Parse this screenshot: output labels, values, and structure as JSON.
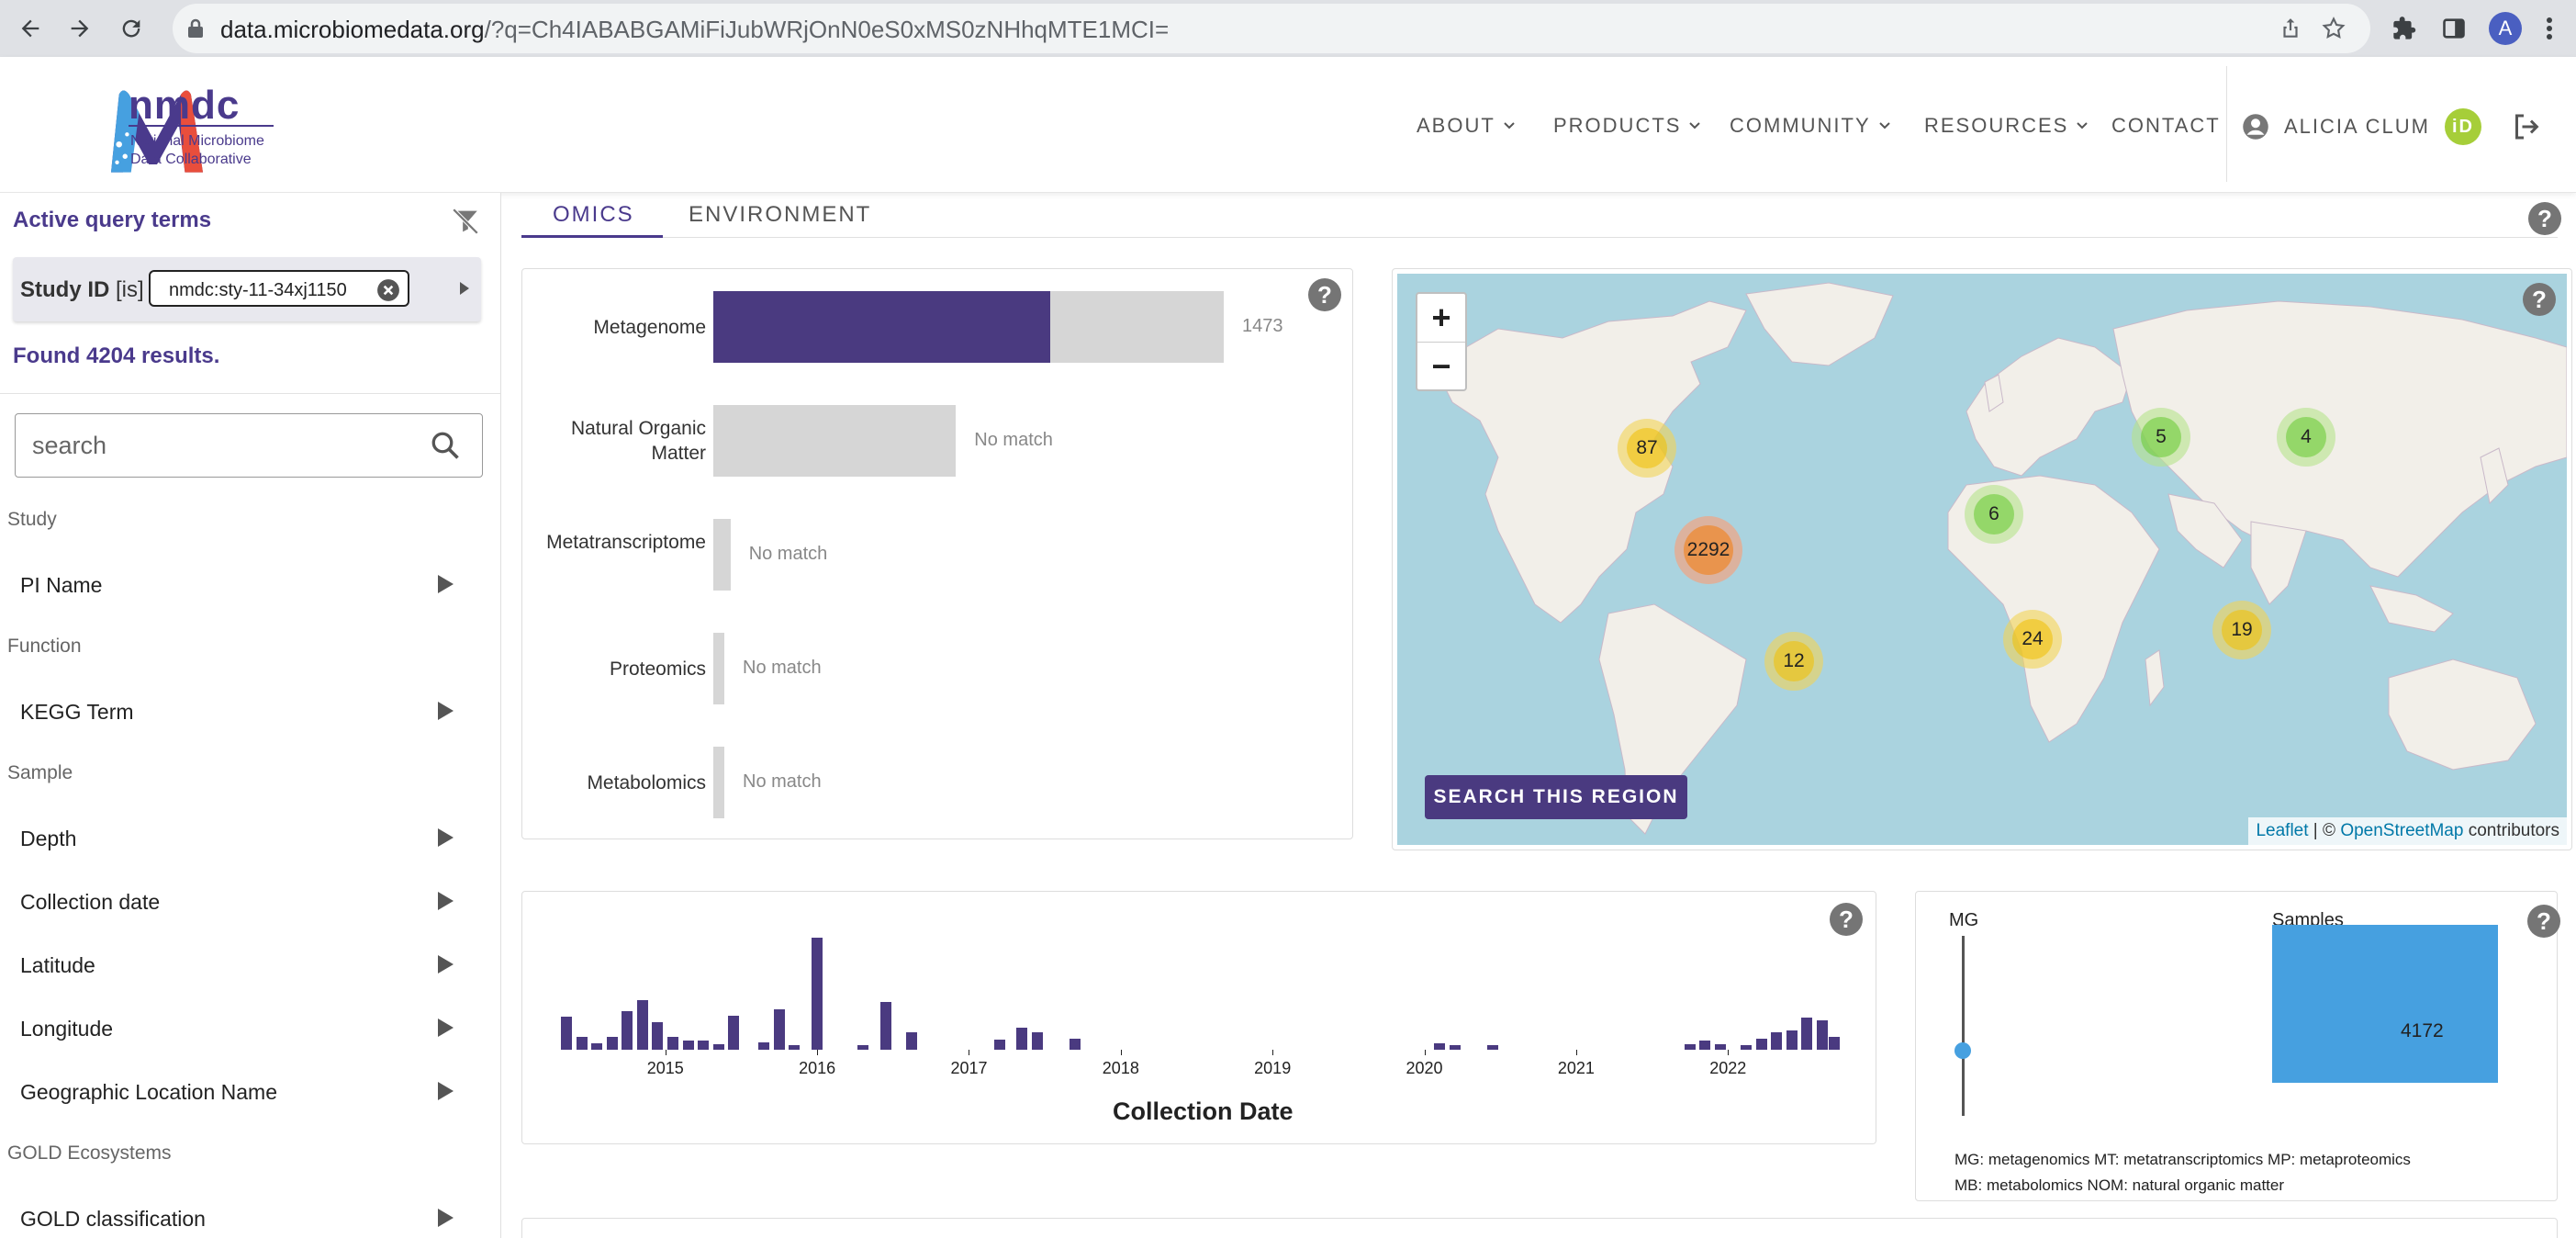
{
  "browser": {
    "url_host": "data.microbiomedata.org",
    "url_path": "/?q=Ch4IABABGAMiFiJubWRjOnN0eS0xMS0zNHhqMTE1MCI=",
    "profile_initial": "A"
  },
  "header": {
    "logo_word": "nmdc",
    "logo_sub_line1": "National Microbiome",
    "logo_sub_line2": "Data Collaborative",
    "nav": [
      {
        "label": "ABOUT"
      },
      {
        "label": "PRODUCTS"
      },
      {
        "label": "COMMUNITY"
      },
      {
        "label": "RESOURCES"
      },
      {
        "label": "CONTACT"
      }
    ],
    "user_name": "ALICIA CLUM",
    "orcid_label": "iD"
  },
  "sidebar": {
    "active_query_title": "Active query terms",
    "term_field": "Study ID",
    "term_op": "[is]",
    "term_value": "nmdc:sty-11-34xj1150",
    "found_text": "Found 4204 results.",
    "search_placeholder": "search",
    "groups": [
      {
        "title": "Study",
        "items": [
          "PI Name"
        ]
      },
      {
        "title": "Function",
        "items": [
          "KEGG Term"
        ]
      },
      {
        "title": "Sample",
        "items": [
          "Depth",
          "Collection date",
          "Latitude",
          "Longitude",
          "Geographic Location Name"
        ]
      },
      {
        "title": "GOLD Ecosystems",
        "items": [
          "GOLD classification"
        ]
      }
    ]
  },
  "tabs": [
    {
      "label": "OMICS",
      "active": true
    },
    {
      "label": "ENVIRONMENT",
      "active": false
    }
  ],
  "colors": {
    "brand": "#4a3a80",
    "bar_bg": "#d6d6d6",
    "upset_bar": "#46a0e0"
  },
  "omics_chart": {
    "chart_data": {
      "type": "bar",
      "orientation": "horizontal",
      "categories": [
        "Metagenome",
        "Natural Organic Matter",
        "Metatranscriptome",
        "Proteomics",
        "Metabolomics"
      ],
      "matched": [
        1473,
        0,
        0,
        0,
        0
      ],
      "totals": [
        2230,
        1060,
        75,
        38,
        28
      ],
      "value_labels": [
        "1473",
        "No match",
        "No match",
        "No match",
        "No match"
      ]
    }
  },
  "map": {
    "zoom_in": "+",
    "zoom_out": "−",
    "search_region_label": "SEARCH THIS REGION",
    "attrib_leaflet": "Leaflet",
    "attrib_sep": " | © ",
    "attrib_osm": "OpenStreetMap",
    "attrib_tail": " contributors",
    "clusters": [
      {
        "count": "87",
        "color": "y"
      },
      {
        "count": "2292",
        "color": "o"
      },
      {
        "count": "12",
        "color": "y"
      },
      {
        "count": "6",
        "color": "g"
      },
      {
        "count": "24",
        "color": "y"
      },
      {
        "count": "5",
        "color": "g"
      },
      {
        "count": "4",
        "color": "g"
      },
      {
        "count": "19",
        "color": "y"
      }
    ]
  },
  "histogram": {
    "chart_data": {
      "type": "bar",
      "xlabel": "Collection Date",
      "x_ticks": [
        "2015",
        "2016",
        "2017",
        "2018",
        "2019",
        "2020",
        "2021",
        "2022"
      ],
      "x_start_year": 2014.3,
      "x_end_year": 2022.67,
      "bins": [
        {
          "year": 2014.35,
          "value": 36
        },
        {
          "year": 2014.45,
          "value": 14
        },
        {
          "year": 2014.55,
          "value": 7
        },
        {
          "year": 2014.65,
          "value": 14
        },
        {
          "year": 2014.75,
          "value": 42
        },
        {
          "year": 2014.85,
          "value": 54
        },
        {
          "year": 2014.95,
          "value": 30
        },
        {
          "year": 2015.05,
          "value": 14
        },
        {
          "year": 2015.15,
          "value": 10
        },
        {
          "year": 2015.25,
          "value": 10
        },
        {
          "year": 2015.35,
          "value": 6
        },
        {
          "year": 2015.45,
          "value": 37
        },
        {
          "year": 2015.65,
          "value": 8
        },
        {
          "year": 2015.75,
          "value": 44
        },
        {
          "year": 2015.85,
          "value": 5
        },
        {
          "year": 2016.0,
          "value": 121
        },
        {
          "year": 2016.3,
          "value": 5
        },
        {
          "year": 2016.45,
          "value": 52
        },
        {
          "year": 2016.62,
          "value": 19
        },
        {
          "year": 2017.2,
          "value": 11
        },
        {
          "year": 2017.35,
          "value": 24
        },
        {
          "year": 2017.45,
          "value": 19
        },
        {
          "year": 2017.7,
          "value": 12
        },
        {
          "year": 2020.1,
          "value": 7
        },
        {
          "year": 2020.2,
          "value": 5
        },
        {
          "year": 2020.45,
          "value": 5
        },
        {
          "year": 2021.75,
          "value": 6
        },
        {
          "year": 2021.85,
          "value": 10
        },
        {
          "year": 2021.95,
          "value": 6
        },
        {
          "year": 2022.12,
          "value": 5
        },
        {
          "year": 2022.22,
          "value": 12
        },
        {
          "year": 2022.32,
          "value": 19
        },
        {
          "year": 2022.42,
          "value": 21
        },
        {
          "year": 2022.52,
          "value": 35
        },
        {
          "year": 2022.62,
          "value": 32
        },
        {
          "year": 2022.7,
          "value": 14
        }
      ],
      "ymax": 121
    }
  },
  "upset": {
    "axis_label": "MG",
    "samples_label": "Samples",
    "chart_data": {
      "type": "bar",
      "categories": [
        "MG"
      ],
      "values": [
        4172
      ],
      "value_label": "4172"
    },
    "legend_line1": "MG: metagenomics   MT: metatranscriptomics   MP: metaproteomics",
    "legend_line2": "MB: metabolomics   NOM: natural organic matter"
  }
}
